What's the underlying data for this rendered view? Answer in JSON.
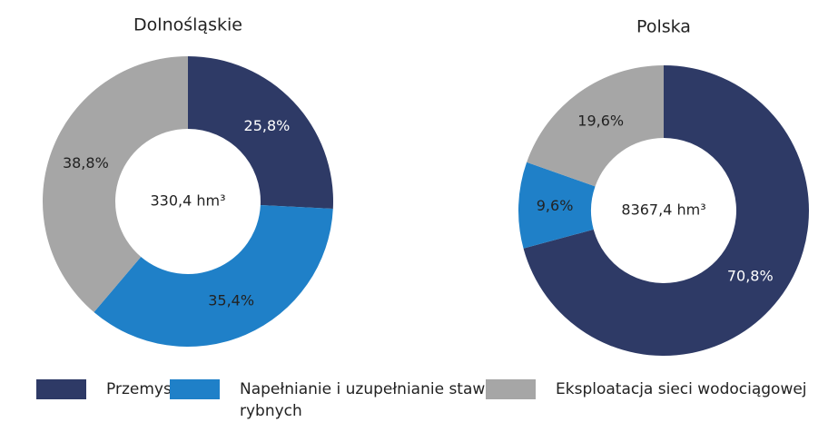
{
  "chart_data": [
    {
      "type": "donut",
      "title": "Dolnośląskie",
      "center_label": "330,4 hm³",
      "categories": [
        "Przemysł",
        "Napełnianie i uzupełnianie stawów rybnych",
        "Eksploatacja sieci wodociągowej"
      ],
      "values": [
        25.8,
        35.4,
        38.8
      ],
      "value_labels": [
        "25,8%",
        "35,4%",
        "38,8%"
      ],
      "colors": [
        "#2e3a66",
        "#1f80c8",
        "#a6a6a6"
      ]
    },
    {
      "type": "donut",
      "title": "Polska",
      "center_label": "8367,4 hm³",
      "categories": [
        "Przemysł",
        "Napełnianie i uzupełnianie stawów rybnych",
        "Eksploatacja sieci wodociągowej"
      ],
      "values": [
        70.8,
        9.6,
        19.6
      ],
      "value_labels": [
        "70,8%",
        "9,6%",
        "19,6%"
      ],
      "colors": [
        "#2e3a66",
        "#1f80c8",
        "#a6a6a6"
      ]
    }
  ]
}
